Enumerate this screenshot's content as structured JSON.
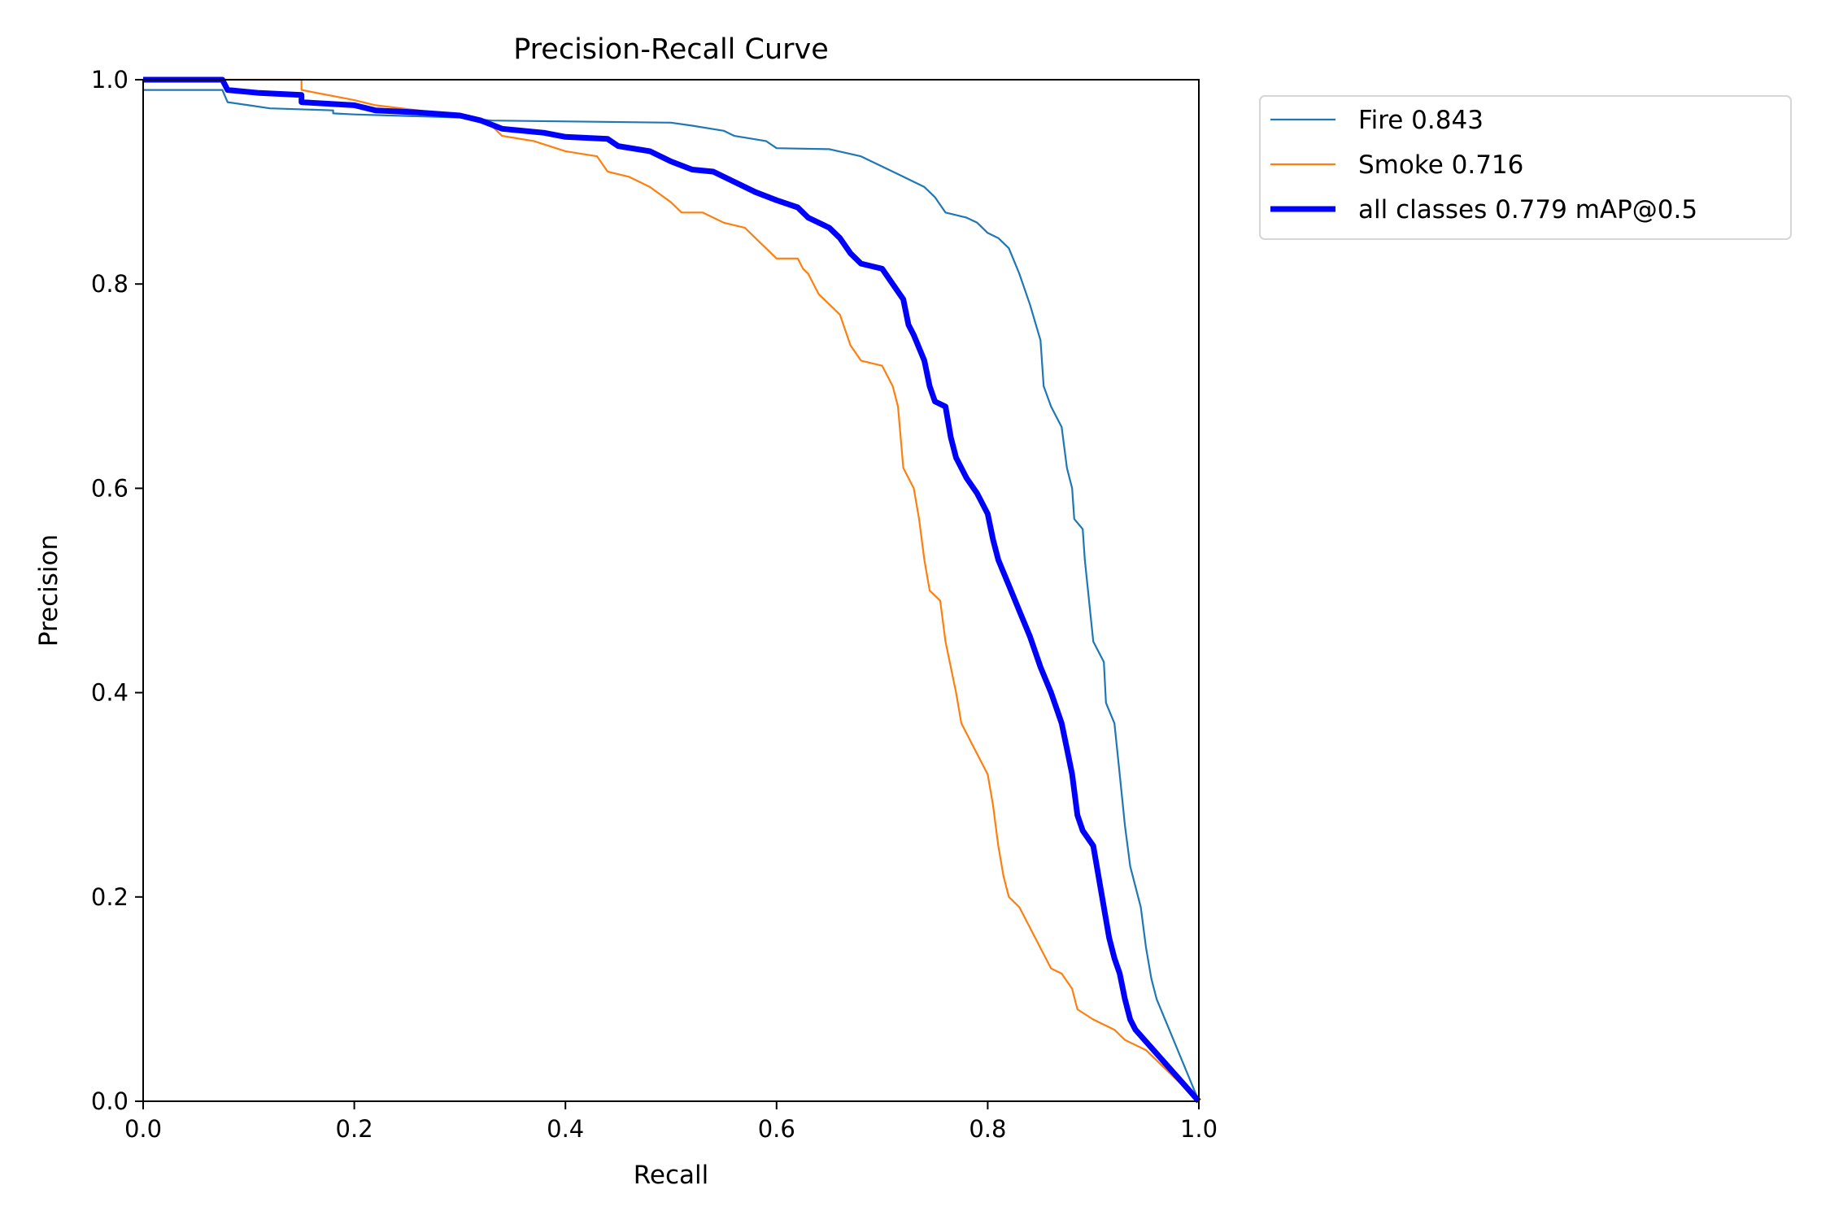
{
  "chart_data": {
    "type": "line",
    "title": "Precision-Recall Curve",
    "xlabel": "Recall",
    "ylabel": "Precision",
    "xlim": [
      0,
      1
    ],
    "ylim": [
      0,
      1
    ],
    "xticks": [
      "0.0",
      "0.2",
      "0.4",
      "0.6",
      "0.8",
      "1.0"
    ],
    "yticks": [
      "0.0",
      "0.2",
      "0.4",
      "0.6",
      "0.8",
      "1.0"
    ],
    "grid": false,
    "legend_position": "outside-top-right",
    "series": [
      {
        "name": "Fire 0.843",
        "color": "#1f77b4",
        "x": [
          0,
          0.075,
          0.08,
          0.1,
          0.12,
          0.18,
          0.18,
          0.2,
          0.3,
          0.33,
          0.5,
          0.52,
          0.55,
          0.56,
          0.59,
          0.6,
          0.65,
          0.68,
          0.7,
          0.72,
          0.74,
          0.75,
          0.76,
          0.78,
          0.79,
          0.8,
          0.81,
          0.82,
          0.83,
          0.84,
          0.85,
          0.853,
          0.86,
          0.87,
          0.875,
          0.88,
          0.882,
          0.89,
          0.892,
          0.895,
          0.9,
          0.905,
          0.91,
          0.912,
          0.92,
          0.925,
          0.93,
          0.935,
          0.94,
          0.945,
          0.95,
          0.955,
          0.96,
          1.0
        ],
        "y": [
          0.99,
          0.99,
          0.978,
          0.975,
          0.972,
          0.97,
          0.967,
          0.966,
          0.963,
          0.96,
          0.958,
          0.955,
          0.95,
          0.945,
          0.94,
          0.933,
          0.932,
          0.925,
          0.915,
          0.905,
          0.895,
          0.885,
          0.87,
          0.865,
          0.86,
          0.85,
          0.845,
          0.835,
          0.81,
          0.78,
          0.745,
          0.7,
          0.68,
          0.66,
          0.62,
          0.6,
          0.57,
          0.56,
          0.53,
          0.5,
          0.45,
          0.44,
          0.43,
          0.39,
          0.37,
          0.32,
          0.27,
          0.23,
          0.21,
          0.19,
          0.15,
          0.12,
          0.1,
          0.0
        ]
      },
      {
        "name": "Smoke 0.716",
        "color": "#ff7f0e",
        "x": [
          0,
          0.15,
          0.15,
          0.2,
          0.22,
          0.26,
          0.3,
          0.33,
          0.34,
          0.37,
          0.4,
          0.43,
          0.44,
          0.46,
          0.48,
          0.5,
          0.51,
          0.53,
          0.55,
          0.57,
          0.58,
          0.59,
          0.6,
          0.62,
          0.625,
          0.63,
          0.64,
          0.65,
          0.66,
          0.67,
          0.68,
          0.7,
          0.71,
          0.715,
          0.72,
          0.73,
          0.735,
          0.74,
          0.745,
          0.755,
          0.76,
          0.77,
          0.775,
          0.78,
          0.79,
          0.8,
          0.805,
          0.81,
          0.815,
          0.82,
          0.83,
          0.84,
          0.85,
          0.86,
          0.87,
          0.88,
          0.885,
          0.9,
          0.92,
          0.93,
          0.95,
          1.0
        ],
        "y": [
          1.0,
          1.0,
          0.99,
          0.98,
          0.975,
          0.97,
          0.965,
          0.955,
          0.945,
          0.94,
          0.93,
          0.925,
          0.91,
          0.905,
          0.895,
          0.88,
          0.87,
          0.87,
          0.86,
          0.855,
          0.845,
          0.835,
          0.825,
          0.825,
          0.815,
          0.81,
          0.79,
          0.78,
          0.77,
          0.74,
          0.725,
          0.72,
          0.7,
          0.68,
          0.62,
          0.6,
          0.57,
          0.53,
          0.5,
          0.49,
          0.45,
          0.4,
          0.37,
          0.36,
          0.34,
          0.32,
          0.29,
          0.25,
          0.22,
          0.2,
          0.19,
          0.17,
          0.15,
          0.13,
          0.125,
          0.11,
          0.09,
          0.08,
          0.07,
          0.06,
          0.05,
          0.0
        ]
      },
      {
        "name": "all classes 0.779 mAP@0.5",
        "color": "#0000ff",
        "x": [
          0,
          0.075,
          0.08,
          0.11,
          0.15,
          0.15,
          0.2,
          0.22,
          0.26,
          0.3,
          0.32,
          0.34,
          0.38,
          0.4,
          0.44,
          0.45,
          0.48,
          0.5,
          0.52,
          0.54,
          0.56,
          0.58,
          0.6,
          0.62,
          0.63,
          0.65,
          0.66,
          0.67,
          0.68,
          0.7,
          0.71,
          0.72,
          0.725,
          0.73,
          0.74,
          0.745,
          0.75,
          0.76,
          0.765,
          0.77,
          0.78,
          0.79,
          0.8,
          0.805,
          0.81,
          0.82,
          0.83,
          0.84,
          0.85,
          0.86,
          0.87,
          0.875,
          0.88,
          0.885,
          0.89,
          0.9,
          0.905,
          0.91,
          0.915,
          0.92,
          0.925,
          0.93,
          0.935,
          0.94,
          1.0
        ],
        "y": [
          1.0,
          1.0,
          0.99,
          0.987,
          0.985,
          0.978,
          0.975,
          0.97,
          0.968,
          0.965,
          0.96,
          0.952,
          0.948,
          0.944,
          0.942,
          0.935,
          0.93,
          0.92,
          0.912,
          0.91,
          0.9,
          0.89,
          0.882,
          0.875,
          0.865,
          0.855,
          0.845,
          0.83,
          0.82,
          0.815,
          0.8,
          0.785,
          0.76,
          0.75,
          0.725,
          0.7,
          0.685,
          0.68,
          0.65,
          0.63,
          0.61,
          0.595,
          0.575,
          0.55,
          0.53,
          0.505,
          0.48,
          0.455,
          0.425,
          0.4,
          0.37,
          0.345,
          0.32,
          0.28,
          0.265,
          0.25,
          0.22,
          0.19,
          0.16,
          0.14,
          0.125,
          0.1,
          0.08,
          0.07,
          0.0
        ]
      }
    ]
  }
}
